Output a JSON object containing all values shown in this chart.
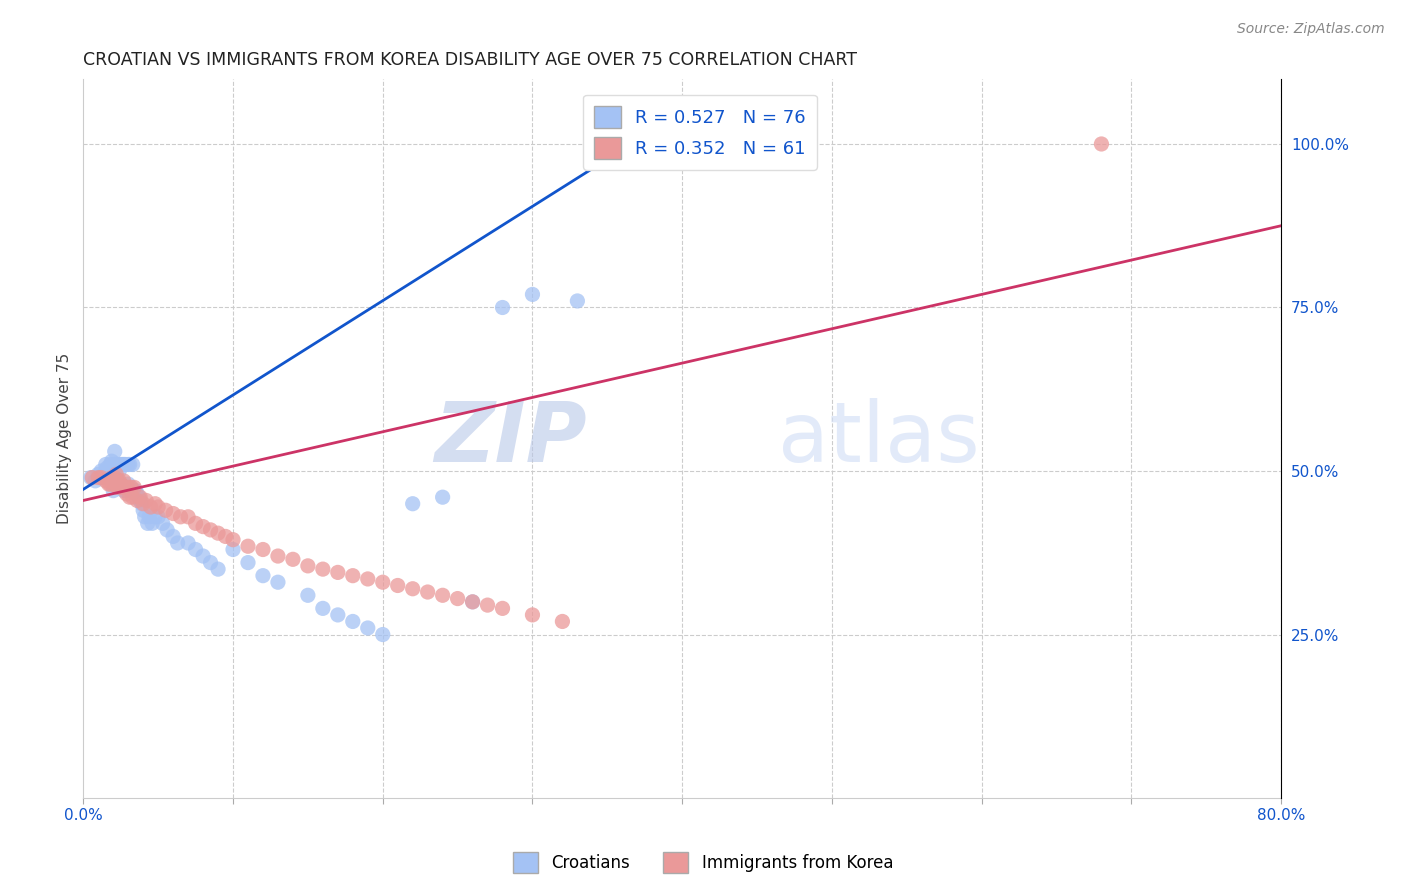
{
  "title": "CROATIAN VS IMMIGRANTS FROM KOREA DISABILITY AGE OVER 75 CORRELATION CHART",
  "source": "Source: ZipAtlas.com",
  "ylabel": "Disability Age Over 75",
  "xlim": [
    0.0,
    0.8
  ],
  "ylim": [
    0.0,
    1.1
  ],
  "legend_blue_text": "R = 0.527   N = 76",
  "legend_pink_text": "R = 0.352   N = 61",
  "legend_label_blue": "Croatians",
  "legend_label_pink": "Immigrants from Korea",
  "blue_color": "#a4c2f4",
  "pink_color": "#ea9999",
  "blue_line_color": "#1155cc",
  "pink_line_color": "#cc3366",
  "watermark_zip": "ZIP",
  "watermark_atlas": "atlas",
  "background_color": "#ffffff",
  "grid_color": "#cccccc",
  "blue_scatter_x": [
    0.005,
    0.008,
    0.01,
    0.012,
    0.013,
    0.015,
    0.015,
    0.016,
    0.017,
    0.018,
    0.018,
    0.019,
    0.02,
    0.02,
    0.021,
    0.021,
    0.022,
    0.022,
    0.023,
    0.023,
    0.024,
    0.024,
    0.025,
    0.025,
    0.026,
    0.026,
    0.027,
    0.027,
    0.028,
    0.028,
    0.029,
    0.03,
    0.03,
    0.031,
    0.031,
    0.032,
    0.033,
    0.033,
    0.034,
    0.035,
    0.036,
    0.037,
    0.038,
    0.039,
    0.04,
    0.041,
    0.043,
    0.044,
    0.046,
    0.048,
    0.05,
    0.053,
    0.056,
    0.06,
    0.063,
    0.07,
    0.075,
    0.08,
    0.085,
    0.09,
    0.1,
    0.11,
    0.12,
    0.13,
    0.15,
    0.16,
    0.17,
    0.18,
    0.19,
    0.2,
    0.22,
    0.24,
    0.26,
    0.28,
    0.3,
    0.33
  ],
  "blue_scatter_y": [
    0.49,
    0.485,
    0.495,
    0.5,
    0.49,
    0.5,
    0.51,
    0.505,
    0.49,
    0.495,
    0.51,
    0.515,
    0.47,
    0.49,
    0.51,
    0.53,
    0.49,
    0.51,
    0.48,
    0.51,
    0.48,
    0.5,
    0.48,
    0.51,
    0.475,
    0.51,
    0.47,
    0.51,
    0.47,
    0.51,
    0.47,
    0.48,
    0.51,
    0.47,
    0.51,
    0.47,
    0.47,
    0.51,
    0.47,
    0.47,
    0.465,
    0.46,
    0.455,
    0.45,
    0.44,
    0.43,
    0.42,
    0.43,
    0.42,
    0.43,
    0.43,
    0.42,
    0.41,
    0.4,
    0.39,
    0.39,
    0.38,
    0.37,
    0.36,
    0.35,
    0.38,
    0.36,
    0.34,
    0.33,
    0.31,
    0.29,
    0.28,
    0.27,
    0.26,
    0.25,
    0.45,
    0.46,
    0.3,
    0.75,
    0.77,
    0.76
  ],
  "pink_scatter_x": [
    0.006,
    0.01,
    0.012,
    0.015,
    0.017,
    0.018,
    0.019,
    0.02,
    0.021,
    0.022,
    0.022,
    0.023,
    0.024,
    0.025,
    0.026,
    0.027,
    0.028,
    0.029,
    0.03,
    0.031,
    0.032,
    0.033,
    0.034,
    0.036,
    0.038,
    0.04,
    0.042,
    0.045,
    0.048,
    0.05,
    0.055,
    0.06,
    0.065,
    0.07,
    0.075,
    0.08,
    0.085,
    0.09,
    0.095,
    0.1,
    0.11,
    0.12,
    0.13,
    0.14,
    0.15,
    0.16,
    0.17,
    0.18,
    0.19,
    0.2,
    0.21,
    0.22,
    0.23,
    0.24,
    0.25,
    0.26,
    0.27,
    0.28,
    0.3,
    0.32,
    0.68
  ],
  "pink_scatter_y": [
    0.49,
    0.49,
    0.49,
    0.485,
    0.48,
    0.48,
    0.49,
    0.48,
    0.49,
    0.48,
    0.495,
    0.475,
    0.485,
    0.48,
    0.475,
    0.485,
    0.475,
    0.465,
    0.475,
    0.46,
    0.475,
    0.46,
    0.475,
    0.455,
    0.46,
    0.45,
    0.455,
    0.445,
    0.45,
    0.445,
    0.44,
    0.435,
    0.43,
    0.43,
    0.42,
    0.415,
    0.41,
    0.405,
    0.4,
    0.395,
    0.385,
    0.38,
    0.37,
    0.365,
    0.355,
    0.35,
    0.345,
    0.34,
    0.335,
    0.33,
    0.325,
    0.32,
    0.315,
    0.31,
    0.305,
    0.3,
    0.295,
    0.29,
    0.28,
    0.27,
    1.0
  ],
  "blue_line_x0": 0.0,
  "blue_line_y0": 0.472,
  "blue_line_x1": 0.38,
  "blue_line_y1": 1.02,
  "pink_line_x0": 0.0,
  "pink_line_y0": 0.455,
  "pink_line_x1": 0.8,
  "pink_line_y1": 0.875
}
